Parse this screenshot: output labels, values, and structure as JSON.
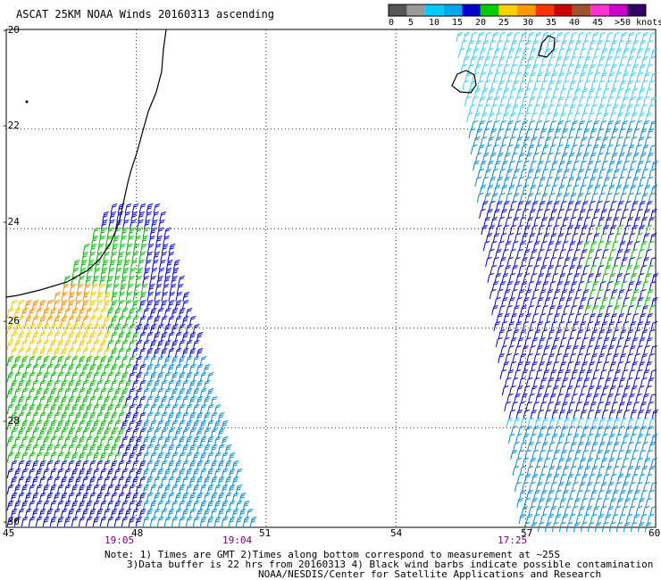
{
  "title": "ASCAT 25KM NOAA Winds 20160313 ascending",
  "colorbar": {
    "segments": [
      "#555555",
      "#9a9a9a",
      "#00ccff",
      "#00a8ee",
      "#0000cc",
      "#00cc00",
      "#f8d000",
      "#ff9900",
      "#ff3300",
      "#cc0000",
      "#a0522d",
      "#ff33cc",
      "#cc00cc",
      "#330066"
    ],
    "labels": [
      "0",
      "5",
      "10",
      "15",
      "20",
      "25",
      "30",
      "35",
      "40",
      "45",
      ">50 knots"
    ]
  },
  "axes": {
    "lon_ticks": [
      "45",
      "48",
      "51",
      "54",
      "57",
      "60"
    ],
    "lat_ticks": [
      "-20",
      "-22",
      "-24",
      "-26",
      "-28",
      "-30"
    ],
    "lon_range": [
      45,
      60
    ],
    "lat_range": [
      -30,
      -20
    ],
    "grid": "dotted"
  },
  "pass_times": [
    "19:05",
    "19:04",
    "17:25"
  ],
  "notes": [
    "Note: 1) Times are GMT 2)Times along bottom correspond to measurement at ~25S",
    "3)Data buffer is 22 hrs from 20160313 4) Black wind barbs indicate possible contamination",
    "NOAA/NESDIS/Center for Satellite Applications and Research"
  ],
  "wind_colors": {
    "blue": "#0000cc",
    "mid_blue": "#0088dd",
    "cyan": "#33ccff",
    "green": "#00bb00",
    "yellow": "#f0c800",
    "orange": "#ff8800"
  }
}
